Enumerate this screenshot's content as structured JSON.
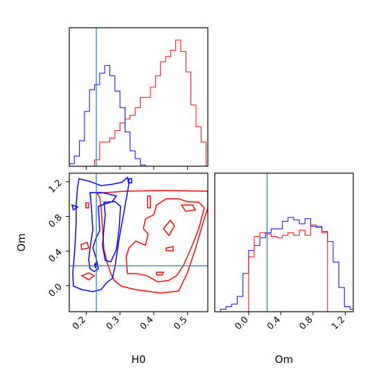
{
  "colors": {
    "red": "#ff0000",
    "blue": "#0000ff",
    "truth": "#1f77b4"
  },
  "chart_data": [
    {
      "panel": "H0-marginal",
      "type": "step-histogram",
      "xlim": [
        0.15,
        0.56
      ],
      "ylim": [
        0,
        1
      ],
      "truth_x": 0.23,
      "series": [
        {
          "color": "red",
          "x": [
            0.15,
            0.165,
            0.18,
            0.195,
            0.21,
            0.225,
            0.24,
            0.255,
            0.27,
            0.285,
            0.3,
            0.315,
            0.33,
            0.345,
            0.36,
            0.375,
            0.39,
            0.405,
            0.42,
            0.435,
            0.45,
            0.465,
            0.48,
            0.495,
            0.51,
            0.525,
            0.54,
            0.555
          ],
          "values": [
            0.0,
            0.0,
            0.0,
            0.0,
            0.0,
            0.05,
            0.19,
            0.19,
            0.22,
            0.28,
            0.34,
            0.37,
            0.4,
            0.46,
            0.54,
            0.54,
            0.62,
            0.71,
            0.82,
            0.86,
            0.91,
            0.99,
            0.9,
            0.74,
            0.48,
            0.31,
            0.19,
            0.0
          ]
        },
        {
          "color": "blue",
          "x": [
            0.15,
            0.165,
            0.18,
            0.195,
            0.21,
            0.225,
            0.24,
            0.255,
            0.27,
            0.285,
            0.3,
            0.315,
            0.33,
            0.345,
            0.36,
            0.375,
            0.39,
            0.405,
            0.42,
            0.435,
            0.45,
            0.465,
            0.48,
            0.495,
            0.51,
            0.525,
            0.54,
            0.555
          ],
          "values": [
            0.02,
            0.08,
            0.2,
            0.43,
            0.6,
            0.64,
            0.73,
            0.79,
            0.71,
            0.59,
            0.46,
            0.27,
            0.12,
            0.06,
            0.01,
            0.0,
            0.0,
            0.0,
            0.0,
            0.0,
            0.0,
            0.0,
            0.0,
            0.0,
            0.0,
            0.0,
            0.0,
            0.0
          ]
        }
      ],
      "xticks": [
        "0.2",
        "0.3",
        "0.4",
        "0.5"
      ]
    },
    {
      "panel": "H0-Om-joint",
      "type": "contour",
      "xlabel": "H0",
      "ylabel": "Om",
      "xlim": [
        0.15,
        0.56
      ],
      "ylim": [
        -0.3,
        1.3
      ],
      "xticks": [
        "0.2",
        "0.3",
        "0.4",
        "0.5"
      ],
      "yticks": [
        "0.0",
        "0.4",
        "0.8",
        "1.2"
      ],
      "truth_x": 0.23,
      "truth_y": 0.23
    },
    {
      "panel": "Om-marginal",
      "type": "step-histogram",
      "xlabel": "Om",
      "xlim": [
        -0.42,
        1.3
      ],
      "ylim": [
        0,
        1
      ],
      "truth_x": 0.23,
      "xticks": [
        "0.0",
        "0.4",
        "0.8",
        "1.2"
      ],
      "series": [
        {
          "color": "blue",
          "x": [
            -0.42,
            -0.35,
            -0.28,
            -0.21,
            -0.14,
            -0.07,
            0.0,
            0.07,
            0.14,
            0.21,
            0.28,
            0.35,
            0.42,
            0.49,
            0.56,
            0.63,
            0.7,
            0.77,
            0.84,
            0.91,
            0.98,
            1.05,
            1.12,
            1.19,
            1.26
          ],
          "values": [
            0.0,
            0.02,
            0.04,
            0.06,
            0.12,
            0.3,
            0.48,
            0.52,
            0.58,
            0.62,
            0.65,
            0.65,
            0.71,
            0.74,
            0.72,
            0.69,
            0.73,
            0.67,
            0.67,
            0.63,
            0.55,
            0.39,
            0.19,
            0.04,
            0.02
          ]
        },
        {
          "color": "red",
          "x": [
            -0.42,
            -0.35,
            -0.28,
            -0.21,
            -0.14,
            -0.07,
            0.0,
            0.07,
            0.14,
            0.21,
            0.28,
            0.35,
            0.42,
            0.49,
            0.56,
            0.63,
            0.7,
            0.77,
            0.84,
            0.91,
            0.98,
            1.05,
            1.12,
            1.19,
            1.26
          ],
          "values": [
            0.0,
            0.0,
            0.0,
            0.0,
            0.0,
            0.0,
            0.43,
            0.59,
            0.62,
            0.61,
            0.59,
            0.58,
            0.6,
            0.62,
            0.6,
            0.64,
            0.6,
            0.68,
            0.66,
            0.62,
            0.0,
            0.0,
            0.0,
            0.0,
            0.0
          ]
        }
      ]
    }
  ]
}
